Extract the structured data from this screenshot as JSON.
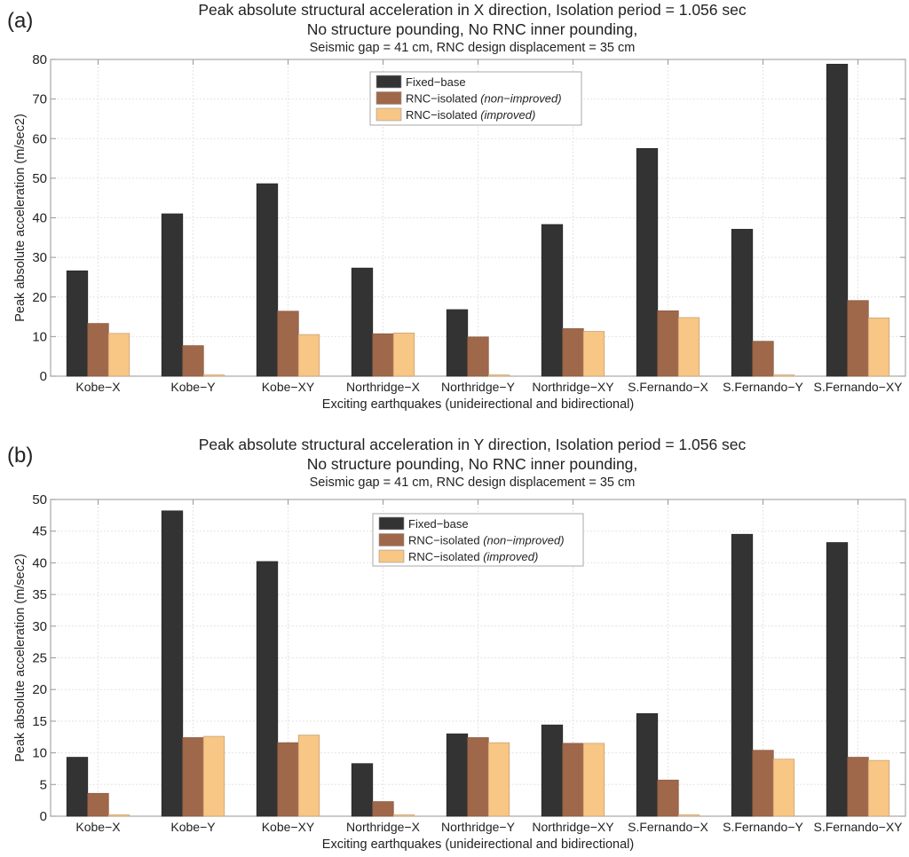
{
  "chart_data": [
    {
      "type": "bar",
      "panel_label": "(a)",
      "title": "Peak absolute structural acceleration in X direction, Isolation period = 1.056 sec",
      "subtitle": "No structure pounding, No RNC inner pounding,",
      "subtitle2": "Seismic gap = 41 cm, RNC design displacement = 35 cm",
      "xlabel": "Exciting earthquakes (unideirectional and bidirectional)",
      "ylabel": "Peak absolute acceleration (m/sec2)",
      "ylim": [
        0,
        80
      ],
      "yticks": [
        0,
        10,
        20,
        30,
        40,
        50,
        60,
        70,
        80
      ],
      "grid": true,
      "legend_position": "top-center",
      "categories": [
        "Kobe−X",
        "Kobe−Y",
        "Kobe−XY",
        "Northridge−X",
        "Northridge−Y",
        "Northridge−XY",
        "S.Fernando−X",
        "S.Fernando−Y",
        "S.Fernando−XY"
      ],
      "series": [
        {
          "name": "Fixed−base",
          "name_italic": "",
          "color": "#333333",
          "values": [
            26.6,
            41.0,
            48.6,
            27.3,
            16.8,
            38.3,
            57.5,
            37.1,
            78.8
          ]
        },
        {
          "name": "RNC−isolated ",
          "name_italic": "(non−improved)",
          "color": "#a0684a",
          "values": [
            13.3,
            7.7,
            16.4,
            10.7,
            9.9,
            12.0,
            16.5,
            8.8,
            19.1
          ]
        },
        {
          "name": "RNC−isolated ",
          "name_italic": "(improved)",
          "color": "#f8c685",
          "values": [
            10.8,
            0.3,
            10.5,
            10.9,
            0.3,
            11.3,
            14.8,
            0.3,
            14.7
          ]
        }
      ]
    },
    {
      "type": "bar",
      "panel_label": "(b)",
      "title": "Peak absolute structural acceleration in Y direction, Isolation period = 1.056 sec",
      "subtitle": "No structure pounding, No RNC inner pounding,",
      "subtitle2": "Seismic gap = 41 cm, RNC design displacement = 35 cm",
      "xlabel": "Exciting earthquakes (unideirectional and bidirectional)",
      "ylabel": "Peak absolute acceleration (m/sec2)",
      "ylim": [
        0,
        50
      ],
      "yticks": [
        0,
        5,
        10,
        15,
        20,
        25,
        30,
        35,
        40,
        45,
        50
      ],
      "grid": true,
      "legend_position": "top-center",
      "categories": [
        "Kobe−X",
        "Kobe−Y",
        "Kobe−XY",
        "Northridge−X",
        "Northridge−Y",
        "Northridge−XY",
        "S.Fernando−X",
        "S.Fernando−Y",
        "S.Fernando−XY"
      ],
      "series": [
        {
          "name": "Fixed−base",
          "name_italic": "",
          "color": "#333333",
          "values": [
            9.3,
            48.2,
            40.2,
            8.3,
            13.0,
            14.4,
            16.2,
            44.5,
            43.2
          ]
        },
        {
          "name": "RNC−isolated ",
          "name_italic": "(non−improved)",
          "color": "#a0684a",
          "values": [
            3.6,
            12.4,
            11.6,
            2.3,
            12.4,
            11.5,
            5.7,
            10.4,
            9.3
          ]
        },
        {
          "name": "RNC−isolated ",
          "name_italic": "(improved)",
          "color": "#f8c685",
          "values": [
            0.2,
            12.6,
            12.8,
            0.2,
            11.6,
            11.5,
            0.2,
            9.0,
            8.8
          ]
        }
      ]
    }
  ]
}
